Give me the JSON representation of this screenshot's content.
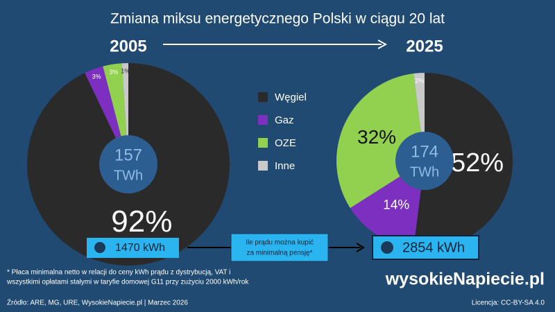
{
  "title": "Zmiana miksu energetycznego Polski w ciągu 20 lat",
  "chart_data": [
    {
      "type": "pie",
      "title": "2005",
      "categories": [
        "Węgiel",
        "Gaz",
        "OZE",
        "Inne"
      ],
      "values": [
        92,
        3,
        3,
        1
      ],
      "value_labels": [
        "92%",
        "3%",
        "3%",
        "1%"
      ],
      "colors": [
        "#2a2a2a",
        "#7d2fbf",
        "#92d050",
        "#c9c9c9"
      ],
      "total": 157,
      "unit": "TWh"
    },
    {
      "type": "pie",
      "title": "2025",
      "values": [
        52,
        14,
        32,
        2
      ],
      "value_labels": [
        "52%",
        "14%",
        "32%",
        "2%"
      ],
      "colors": [
        "#2a2a2a",
        "#7d2fbf",
        "#92d050",
        "#c9c9c9"
      ],
      "total": 174,
      "unit": "TWh"
    }
  ],
  "kwh_2005": "1470 kWh",
  "kwh_2025": "2854 kWh",
  "note": [
    "Ile prądu można kupić",
    "za minimalną pensję*"
  ],
  "footnote": [
    "* Płaca minimalna netto w relacji do ceny kWh prądu z dystrybucją, VAT i",
    "wszystkimi opłatami stałymi w taryfie domowej G11 przy zużyciu 2000 kWh/rok"
  ],
  "source": "Źródło: ARE, MG, URE, WysokieNapiecie.pl  |  Marzec 2026",
  "brand": "wysokieNapiecie.pl",
  "license": "Licencja: CC-BY-SA 4.0"
}
